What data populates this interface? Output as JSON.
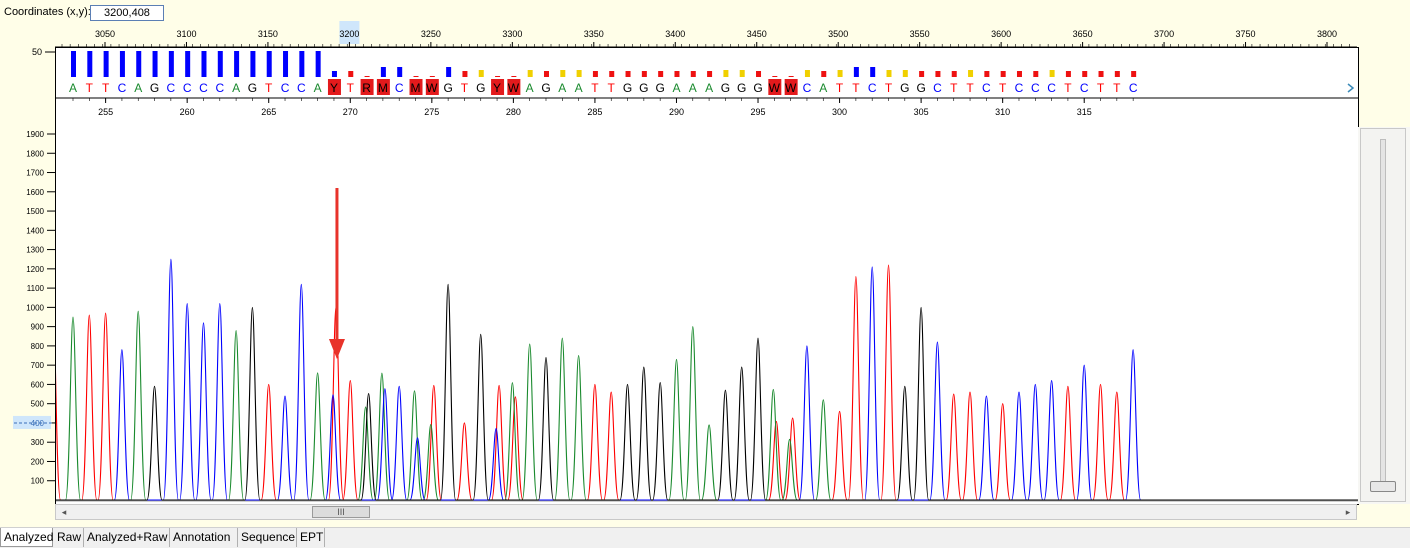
{
  "coordinates": {
    "label": "Coordinates (x,y):",
    "value": "3200,408"
  },
  "scan_axis": {
    "ticks": [
      "3050",
      "3100",
      "3150",
      "3200",
      "3250",
      "3300",
      "3350",
      "3400",
      "3450",
      "3500",
      "3550",
      "3600",
      "3650",
      "3700",
      "3750",
      "3800"
    ],
    "highlight_tick": "3200"
  },
  "quality_axis": {
    "label": "50"
  },
  "sequence": {
    "bases": "ATTCAGCCCCAGTCCAYTRMCMWGTGYWAGAATTGGGAAAGGGWWCATTCTGGCTTCTCCCTCTTC",
    "first_base_number": 253
  },
  "base_numbers": [
    "255",
    "260",
    "265",
    "270",
    "275",
    "280",
    "285",
    "290",
    "295",
    "300",
    "305",
    "310",
    "315"
  ],
  "y_axis": {
    "ticks": [
      "100",
      "200",
      "300",
      "400",
      "500",
      "600",
      "700",
      "800",
      "900",
      "1000",
      "1100",
      "1200",
      "1300",
      "1400",
      "1500",
      "1600",
      "1700",
      "1800",
      "1900"
    ],
    "cursor_label": "400"
  },
  "colors": {
    "A": "#1a8a2e",
    "C": "#0000ff",
    "G": "#000000",
    "T": "#ff0000",
    "mixed_bg": "#e31a1c",
    "arrow": "#e8332a",
    "quality_high": "#0000ff",
    "quality_mid": "#f0d000",
    "quality_low": "#ee1111"
  },
  "chart_data": {
    "type": "line",
    "xlabel": "",
    "ylabel": "",
    "ylim": [
      0,
      1900
    ],
    "series": [
      {
        "name": "A",
        "peaks": [
          950,
          980,
          880,
          660,
          690,
          940,
          810,
          560,
          870,
          810,
          840,
          750,
          730,
          900,
          390,
          820,
          450,
          520,
          610,
          800,
          620,
          540
        ]
      },
      {
        "name": "C",
        "peaks": [
          780,
          1250,
          1020,
          920,
          1020,
          540,
          1120,
          780,
          680,
          590,
          380,
          530,
          800,
          1210,
          820,
          540,
          560,
          600,
          620,
          700
        ]
      },
      {
        "name": "G",
        "peaks": [
          590,
          1000,
          650,
          1120,
          860,
          740,
          600,
          690,
          610,
          570,
          690,
          840
        ]
      },
      {
        "name": "T",
        "peaks": [
          960,
          970,
          600,
          1180,
          620,
          700,
          400,
          700,
          630,
          600,
          560,
          480,
          500,
          460,
          1160,
          1220,
          550,
          560,
          500,
          590,
          600,
          560
        ]
      }
    ],
    "arrow_annotation": {
      "base_index": 16
    }
  },
  "tabs": [
    {
      "label": "Analyzed",
      "active": true
    },
    {
      "label": "Raw"
    },
    {
      "label": "Analyzed+Raw"
    },
    {
      "label": "Annotation"
    },
    {
      "label": "Sequence"
    },
    {
      "label": "EPT"
    }
  ],
  "scroll": {
    "thumb_glyph": "III",
    "left_glyph": "◂",
    "right_glyph": "▸"
  }
}
